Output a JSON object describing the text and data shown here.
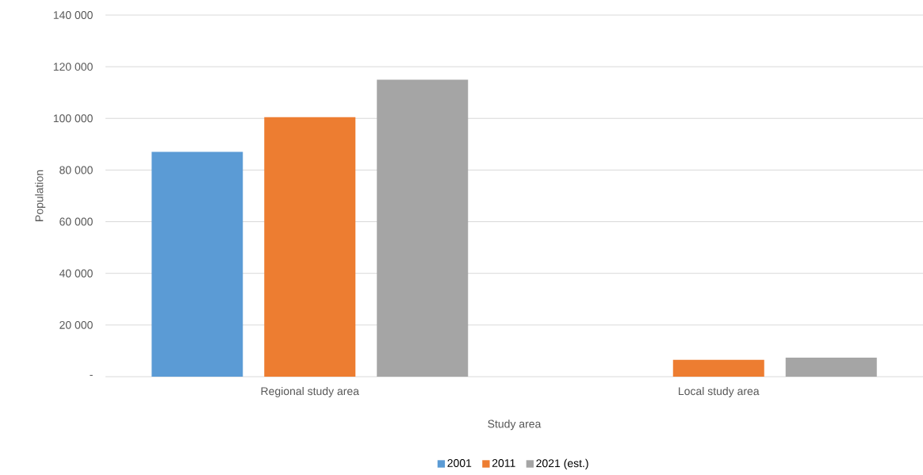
{
  "chart_data": {
    "type": "bar",
    "xlabel": "Study area",
    "ylabel": "Population",
    "categories": [
      "Regional study area",
      "Local study area"
    ],
    "series": [
      {
        "name": "2001",
        "color": "#5b9bd5",
        "values": [
          87000,
          null
        ]
      },
      {
        "name": "2011",
        "color": "#ed7d31",
        "values": [
          100500,
          6500
        ]
      },
      {
        "name": "2021 (est.)",
        "color": "#a5a5a5",
        "values": [
          115000,
          7400
        ]
      }
    ],
    "ylim": [
      0,
      140000
    ],
    "yticks": [
      {
        "value": 0,
        "label": "-"
      },
      {
        "value": 20000,
        "label": "20 000"
      },
      {
        "value": 40000,
        "label": "40 000"
      },
      {
        "value": 60000,
        "label": "60 000"
      },
      {
        "value": 80000,
        "label": "80 000"
      },
      {
        "value": 100000,
        "label": "100 000"
      },
      {
        "value": 120000,
        "label": "120 000"
      },
      {
        "value": 140000,
        "label": "140 000"
      }
    ],
    "grid": "y",
    "legend": "bottom"
  }
}
